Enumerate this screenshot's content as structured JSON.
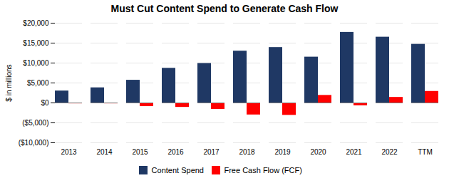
{
  "chart_data": {
    "type": "bar",
    "title": "Must Cut Content Spend to Generate Cash Flow",
    "ylabel": "$ in millions",
    "categories": [
      "2013",
      "2014",
      "2015",
      "2016",
      "2017",
      "2018",
      "2019",
      "2020",
      "2021",
      "2022",
      "TTM"
    ],
    "series": [
      {
        "name": "Content Spend",
        "color": "#1F3864",
        "values": [
          3000,
          3800,
          5700,
          8700,
          9900,
          13000,
          13900,
          11500,
          17700,
          16500,
          14700
        ]
      },
      {
        "name": "Free Cash Flow (FCF)",
        "color": "#FF0000",
        "values": [
          -200,
          -200,
          -900,
          -1100,
          -1600,
          -3000,
          -3100,
          1900,
          -700,
          1400,
          2900
        ]
      }
    ],
    "ylim": [
      -10000,
      20000
    ],
    "yticks": [
      {
        "value": -10000,
        "label": "($10,000)"
      },
      {
        "value": -5000,
        "label": "($5,000)"
      },
      {
        "value": 0,
        "label": "$0"
      },
      {
        "value": 5000,
        "label": "$5,000"
      },
      {
        "value": 10000,
        "label": "$10,000"
      },
      {
        "value": 15000,
        "label": "$15,000"
      },
      {
        "value": 20000,
        "label": "$20,000"
      }
    ],
    "grid": true,
    "legend": "bottom"
  }
}
